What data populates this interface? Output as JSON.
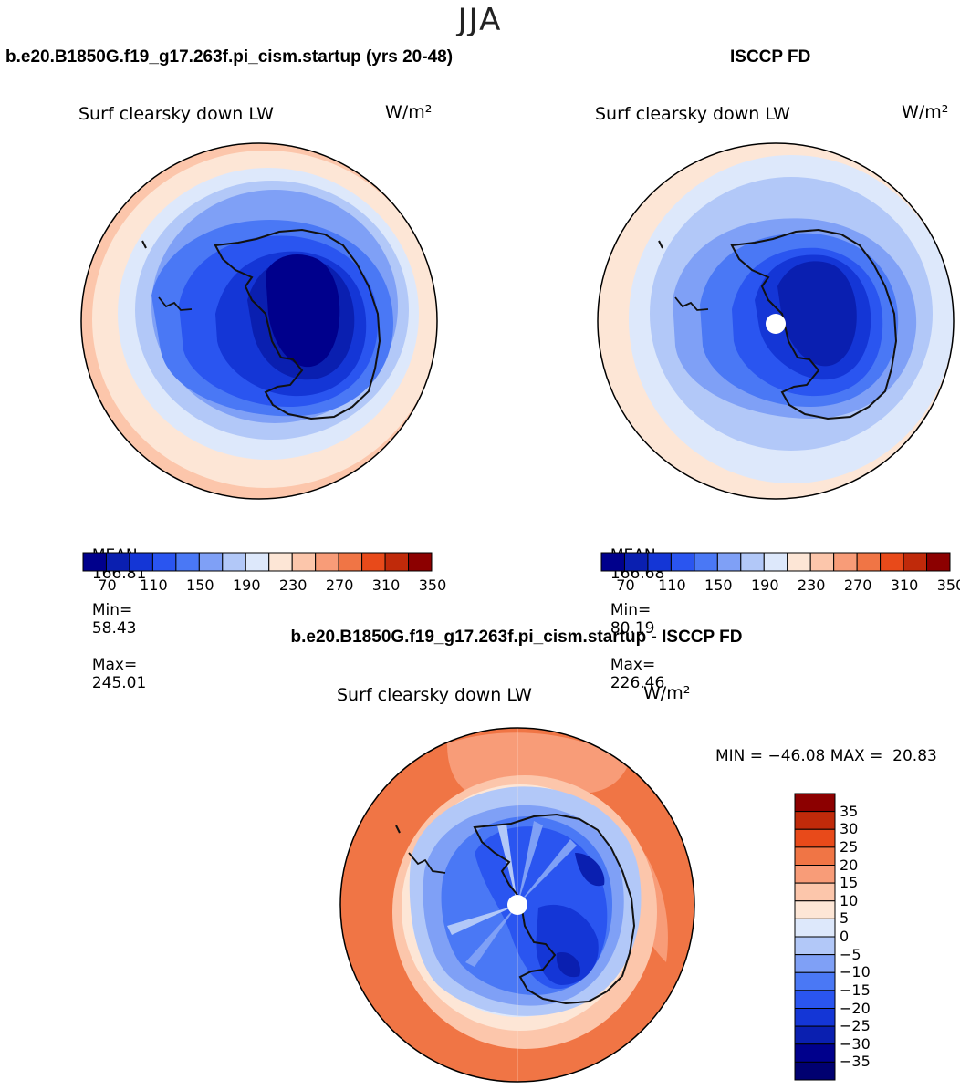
{
  "season": "JJA",
  "colors": {
    "abs_palette": [
      "#00008c",
      "#0a1fb0",
      "#1436d6",
      "#2a55f0",
      "#4a78f5",
      "#7fa0f6",
      "#b2c8f8",
      "#dde8fb",
      "#fde6d6",
      "#fcc6ab",
      "#f89c78",
      "#f07545",
      "#e84a1a",
      "#c02a0a",
      "#8c0000"
    ],
    "diff_palette": [
      "#000090",
      "#0a1fb0",
      "#1436d6",
      "#2a55f0",
      "#4a78f5",
      "#7fa0f6",
      "#b2c8f8",
      "#dde8fb",
      "#fde6d6",
      "#fcc6ab",
      "#f89c78",
      "#f07545",
      "#e84a1a",
      "#c02a0a",
      "#8c0000"
    ]
  },
  "panels": [
    {
      "title": "b.e20.B1850G.f19_g17.263f.pi_cism.startup (yrs 20-48)",
      "variable": "Surf clearsky down LW",
      "units": "W/m²",
      "mean_label": "MEAN=",
      "mean": "166.81",
      "min_label": "Min=",
      "min": "58.43",
      "max_label": "Max=",
      "max": "245.01"
    },
    {
      "title": "ISCCP FD",
      "variable": "Surf clearsky down LW",
      "units": "W/m²",
      "mean_label": "MEAN=",
      "mean": "166.68",
      "min_label": "Min=",
      "min": "80.19",
      "max_label": "Max=",
      "max": "226.46"
    }
  ],
  "abs_ticks": [
    "70",
    "110",
    "150",
    "190",
    "230",
    "270",
    "310",
    "350"
  ],
  "diff": {
    "title": "b.e20.B1850G.f19_g17.263f.pi_cism.startup - ISCCP FD",
    "variable": "Surf clearsky down LW",
    "units": "W/m²",
    "minmax": "MIN = −46.08 MAX =  20.83",
    "ticks": [
      "35",
      "30",
      "25",
      "20",
      "15",
      "10",
      "5",
      "0",
      "−5",
      "−10",
      "−15",
      "−20",
      "−25",
      "−30",
      "−35"
    ]
  }
}
